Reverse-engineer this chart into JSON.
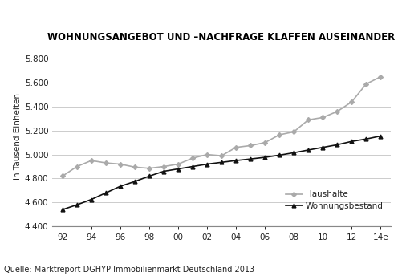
{
  "title": "WOHNUNGSANGEBOT UND –NACHFRAGE KLAFFEN AUSEINANDER",
  "ylabel": "in Tausend Einheiten",
  "source": "Quelle: Marktreport DGHYP Immobilienmarkt Deutschland 2013",
  "x_labels": [
    "92",
    "94",
    "96",
    "98",
    "00",
    "02",
    "04",
    "06",
    "08",
    "10",
    "12",
    "14e"
  ],
  "x_values": [
    1992,
    1993,
    1994,
    1995,
    1996,
    1997,
    1998,
    1999,
    2000,
    2001,
    2002,
    2003,
    2004,
    2005,
    2006,
    2007,
    2008,
    2009,
    2010,
    2011,
    2012,
    2013,
    2014
  ],
  "haushalte": [
    4820,
    4900,
    4950,
    4930,
    4920,
    4895,
    4885,
    4900,
    4920,
    4970,
    5000,
    4990,
    5060,
    5075,
    5100,
    5165,
    5190,
    5290,
    5310,
    5360,
    5440,
    5590,
    5650
  ],
  "wohnungsbestand": [
    4540,
    4580,
    4625,
    4680,
    4735,
    4775,
    4820,
    4860,
    4880,
    4900,
    4920,
    4935,
    4950,
    4963,
    4977,
    4995,
    5015,
    5038,
    5060,
    5082,
    5110,
    5130,
    5155
  ],
  "haushalte_color": "#aaaaaa",
  "wohnungsbestand_color": "#111111",
  "ylim_min": 4400,
  "ylim_max": 5900,
  "yticks": [
    4400,
    4600,
    4800,
    5000,
    5200,
    5400,
    5600,
    5800
  ],
  "background_color": "#ffffff",
  "grid_color": "#cccccc",
  "title_fontsize": 8.5,
  "axis_fontsize": 7.5,
  "source_fontsize": 7.0,
  "legend_haushalte": "Haushalte",
  "legend_wohnungsbestand": "Wohnungsbestand"
}
